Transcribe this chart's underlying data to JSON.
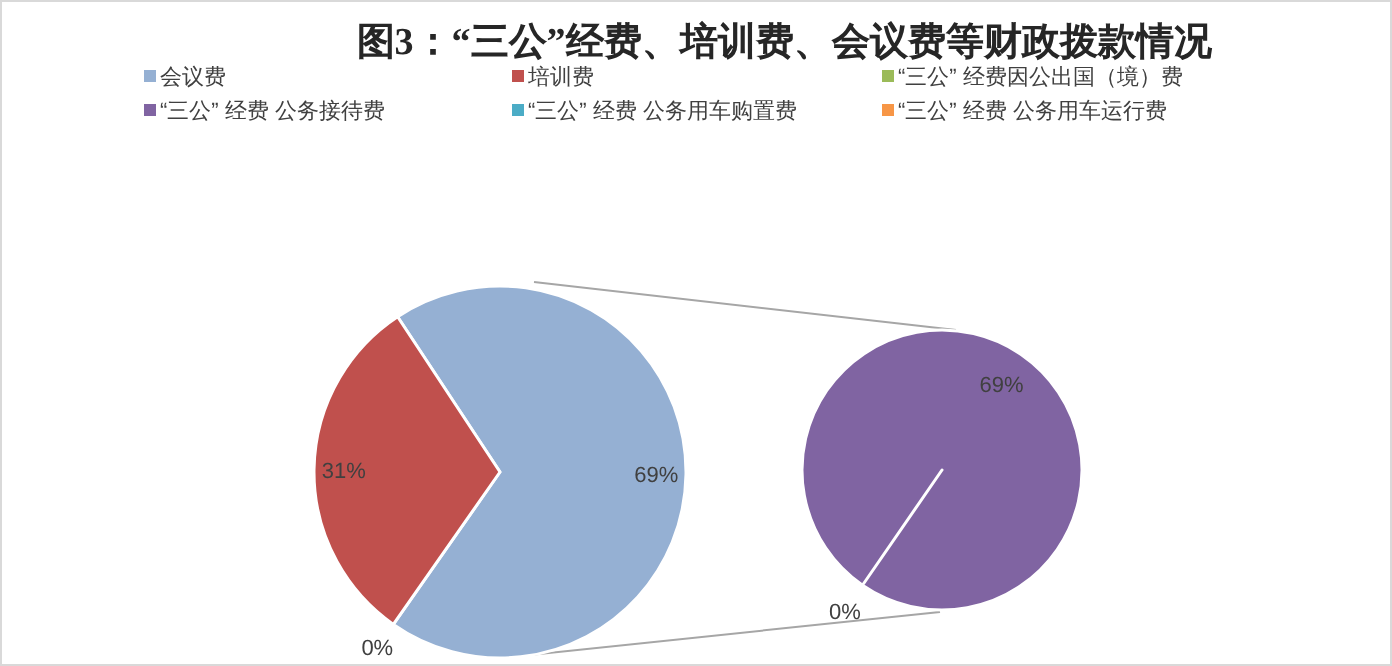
{
  "chart_data": [
    {
      "type": "pie",
      "title": "图3：“三公”经费、培训费、会议费等财政拨款情况",
      "legend": "top",
      "categories": [
        "会议费",
        "培训费",
        null
      ],
      "values": [
        69,
        31,
        0
      ],
      "colors": [
        "#95b0d3",
        "#c0504d",
        "#ffffff"
      ],
      "value_labels": [
        "69%",
        "31%",
        "0%"
      ]
    },
    {
      "type": "pie",
      "categories": [
        "“三公” 经费因公出国（境）费",
        "“三公” 经费 公务接待费",
        "“三公” 经费 公务用车购置费",
        "“三公” 经费 公务用车运行费"
      ],
      "values": [
        0,
        69,
        0,
        0
      ],
      "colors": [
        "#9bbb59",
        "#8064a2",
        "#4bacc6",
        "#f79646"
      ],
      "value_labels": [
        null,
        "69%",
        "0%",
        null
      ]
    }
  ]
}
